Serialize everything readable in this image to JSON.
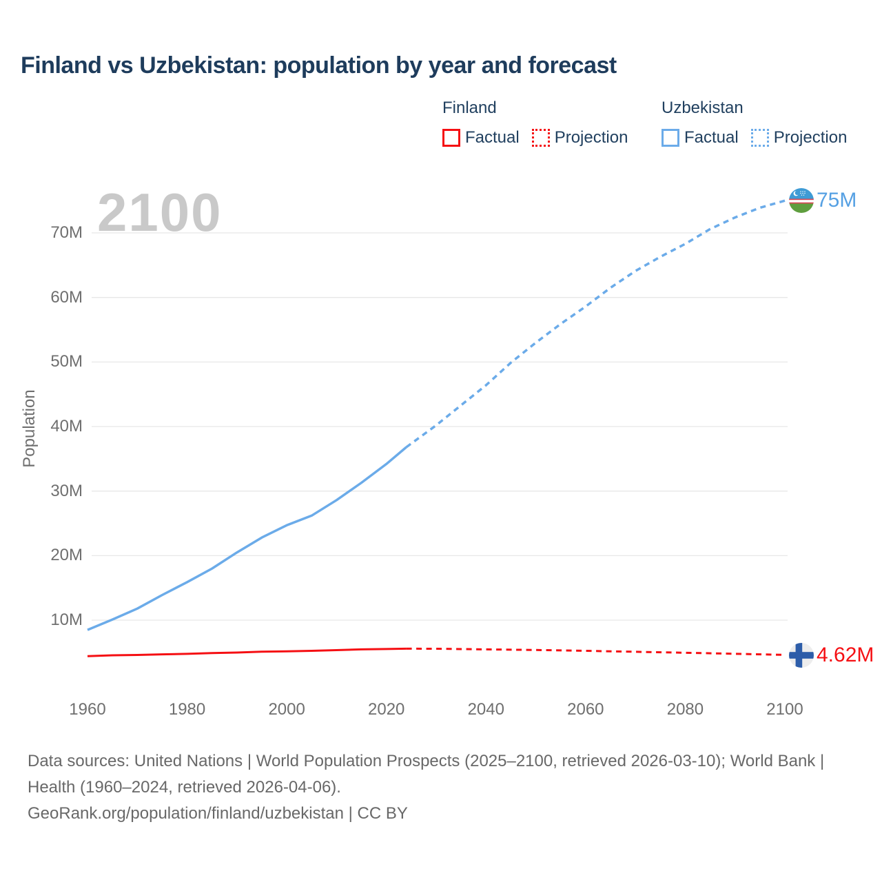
{
  "title": "Finland vs Uzbekistan: population by year and forecast",
  "watermark": "2100",
  "legend": {
    "groups": [
      {
        "name": "Finland",
        "items": [
          {
            "label": "Factual",
            "style": "solid",
            "color": "#f50f13"
          },
          {
            "label": "Projection",
            "style": "dotted",
            "color": "#f50f13"
          }
        ]
      },
      {
        "name": "Uzbekistan",
        "items": [
          {
            "label": "Factual",
            "style": "solid",
            "color": "#6babe9"
          },
          {
            "label": "Projection",
            "style": "dotted",
            "color": "#6babe9"
          }
        ]
      }
    ]
  },
  "end_labels": {
    "uzbekistan": {
      "text": "75M",
      "color": "#55a0e3",
      "flag": "uzbekistan-flag"
    },
    "finland": {
      "text": "4.62M",
      "color": "#f50f13",
      "flag": "finland-flag"
    }
  },
  "footer": {
    "line1": "Data sources: United Nations | World Population Prospects (2025–2100, retrieved 2026-03-10); World Bank | Health (1960–2024, retrieved 2026-04-06).",
    "line2": "GeoRank.org/population/finland/uzbekistan | CC BY"
  },
  "chart_data": {
    "type": "line",
    "title": "Finland vs Uzbekistan: population by year and forecast",
    "xlabel": "",
    "ylabel": "Population",
    "unit": "millions",
    "grid": "horizontal",
    "legend_position": "top-right",
    "xlim": [
      1958,
      2112
    ],
    "ylim": [
      0,
      78
    ],
    "x_ticks": [
      1960,
      1980,
      2000,
      2020,
      2040,
      2060,
      2080,
      2100
    ],
    "y_ticks": [
      {
        "value": 10,
        "label": "10M"
      },
      {
        "value": 20,
        "label": "20M"
      },
      {
        "value": 30,
        "label": "30M"
      },
      {
        "value": 40,
        "label": "40M"
      },
      {
        "value": 50,
        "label": "50M"
      },
      {
        "value": 60,
        "label": "60M"
      },
      {
        "value": 70,
        "label": "70M"
      }
    ],
    "series": [
      {
        "name": "Uzbekistan Factual",
        "country": "Uzbekistan",
        "kind": "factual",
        "color": "#6babe9",
        "dash": "solid",
        "width": 3.5,
        "points": [
          [
            1960,
            8.5
          ],
          [
            1965,
            10.1
          ],
          [
            1970,
            11.8
          ],
          [
            1975,
            13.9
          ],
          [
            1980,
            15.9
          ],
          [
            1985,
            18.0
          ],
          [
            1990,
            20.5
          ],
          [
            1995,
            22.8
          ],
          [
            2000,
            24.7
          ],
          [
            2005,
            26.2
          ],
          [
            2010,
            28.6
          ],
          [
            2015,
            31.3
          ],
          [
            2020,
            34.2
          ],
          [
            2024,
            36.8
          ]
        ]
      },
      {
        "name": "Uzbekistan Projection",
        "country": "Uzbekistan",
        "kind": "projection",
        "color": "#6babe9",
        "dash": "dotted",
        "width": 3.5,
        "points": [
          [
            2024,
            36.8
          ],
          [
            2030,
            40.2
          ],
          [
            2035,
            43.3
          ],
          [
            2040,
            46.4
          ],
          [
            2045,
            49.9
          ],
          [
            2050,
            53.0
          ],
          [
            2055,
            55.9
          ],
          [
            2060,
            58.6
          ],
          [
            2065,
            61.5
          ],
          [
            2070,
            64.1
          ],
          [
            2075,
            66.3
          ],
          [
            2080,
            68.3
          ],
          [
            2085,
            70.6
          ],
          [
            2090,
            72.4
          ],
          [
            2095,
            73.9
          ],
          [
            2100,
            75.0
          ]
        ]
      },
      {
        "name": "Finland Factual",
        "country": "Finland",
        "kind": "factual",
        "color": "#f50f13",
        "dash": "solid",
        "width": 3,
        "points": [
          [
            1960,
            4.43
          ],
          [
            1965,
            4.56
          ],
          [
            1970,
            4.61
          ],
          [
            1975,
            4.71
          ],
          [
            1980,
            4.78
          ],
          [
            1985,
            4.9
          ],
          [
            1990,
            4.99
          ],
          [
            1995,
            5.11
          ],
          [
            2000,
            5.18
          ],
          [
            2005,
            5.25
          ],
          [
            2010,
            5.36
          ],
          [
            2015,
            5.48
          ],
          [
            2020,
            5.53
          ],
          [
            2024,
            5.58
          ]
        ]
      },
      {
        "name": "Finland Projection",
        "country": "Finland",
        "kind": "projection",
        "color": "#f50f13",
        "dash": "dotted",
        "width": 3,
        "points": [
          [
            2024,
            5.58
          ],
          [
            2030,
            5.57
          ],
          [
            2040,
            5.48
          ],
          [
            2050,
            5.38
          ],
          [
            2060,
            5.25
          ],
          [
            2070,
            5.1
          ],
          [
            2080,
            4.95
          ],
          [
            2090,
            4.79
          ],
          [
            2100,
            4.62
          ]
        ]
      }
    ],
    "end_values": {
      "Uzbekistan": "75M",
      "Finland": "4.62M"
    }
  }
}
